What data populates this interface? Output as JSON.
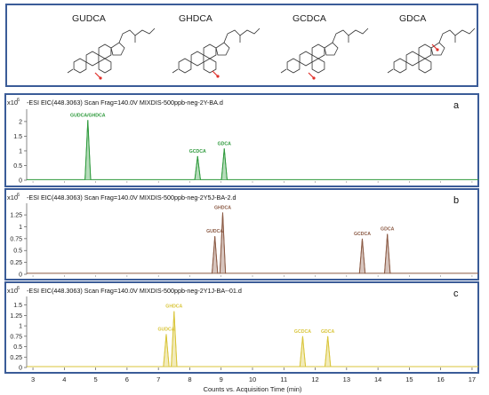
{
  "structures": [
    {
      "name": "GUDCA"
    },
    {
      "name": "GHDCA"
    },
    {
      "name": "GCDCA"
    },
    {
      "name": "GDCA"
    }
  ],
  "colors": {
    "frame": "#3b5c98",
    "panel_a": "#2e9a3c",
    "panel_b": "#8b5a44",
    "panel_c": "#d9c53a",
    "highlight_red": "#e0302a"
  },
  "chart_data": [
    {
      "type": "line",
      "panel_letter": "a",
      "title": "-ESI EIC(448.3063) Scan Frag=140.0V MIXDIS-500ppb-neg-2Y-BA.d",
      "y_multiplier": "x10",
      "y_exponent": "6",
      "yticks": [
        "0",
        "0.5",
        "1",
        "1.5",
        "2"
      ],
      "ylim": [
        0,
        2.3
      ],
      "xlim": [
        2.8,
        17.2
      ],
      "peaks": [
        {
          "label": "GUDCA/GHDCA",
          "x": 4.75,
          "y": 2.05
        },
        {
          "label": "GCDCA",
          "x": 8.25,
          "y": 0.82
        },
        {
          "label": "GDCA",
          "x": 9.1,
          "y": 1.08
        }
      ]
    },
    {
      "type": "line",
      "panel_letter": "b",
      "title": "-ESI EIC(448.3063) Scan Frag=140.0V MIXDIS-500ppb-neg-2Y5J-BA-2.d",
      "y_multiplier": "x10",
      "y_exponent": "6",
      "yticks": [
        "0",
        "0.25",
        "0.5",
        "0.75",
        "1",
        "1.25"
      ],
      "ylim": [
        0,
        1.42
      ],
      "xlim": [
        2.8,
        17.2
      ],
      "peaks": [
        {
          "label": "GUDCA",
          "x": 8.8,
          "y": 0.8
        },
        {
          "label": "GHDCA",
          "x": 9.05,
          "y": 1.3
        },
        {
          "label": "GCDCA",
          "x": 13.5,
          "y": 0.75
        },
        {
          "label": "GDCA",
          "x": 14.3,
          "y": 0.85
        }
      ]
    },
    {
      "type": "line",
      "panel_letter": "c",
      "title": "-ESI EIC(448.3063) Scan Frag=140.0V MIXDIS-500ppb-neg-2Y1J-BA--01.d",
      "y_multiplier": "x10",
      "y_exponent": "6",
      "yticks": [
        "0",
        "0.25",
        "0.5",
        "0.75",
        "1",
        "1.25",
        "1.5"
      ],
      "ylim": [
        0,
        1.62
      ],
      "xlim": [
        2.8,
        17.2
      ],
      "peaks": [
        {
          "label": "GUDCA",
          "x": 7.25,
          "y": 0.8
        },
        {
          "label": "GHDCA",
          "x": 7.5,
          "y": 1.35
        },
        {
          "label": "GCDCA",
          "x": 11.6,
          "y": 0.75
        },
        {
          "label": "GDCA",
          "x": 12.4,
          "y": 0.75
        }
      ],
      "xticks": [
        "3",
        "4",
        "5",
        "6",
        "7",
        "8",
        "9",
        "10",
        "11",
        "12",
        "13",
        "14",
        "15",
        "16",
        "17"
      ],
      "xlabel": "Counts vs. Acquisition Time (min)"
    }
  ]
}
